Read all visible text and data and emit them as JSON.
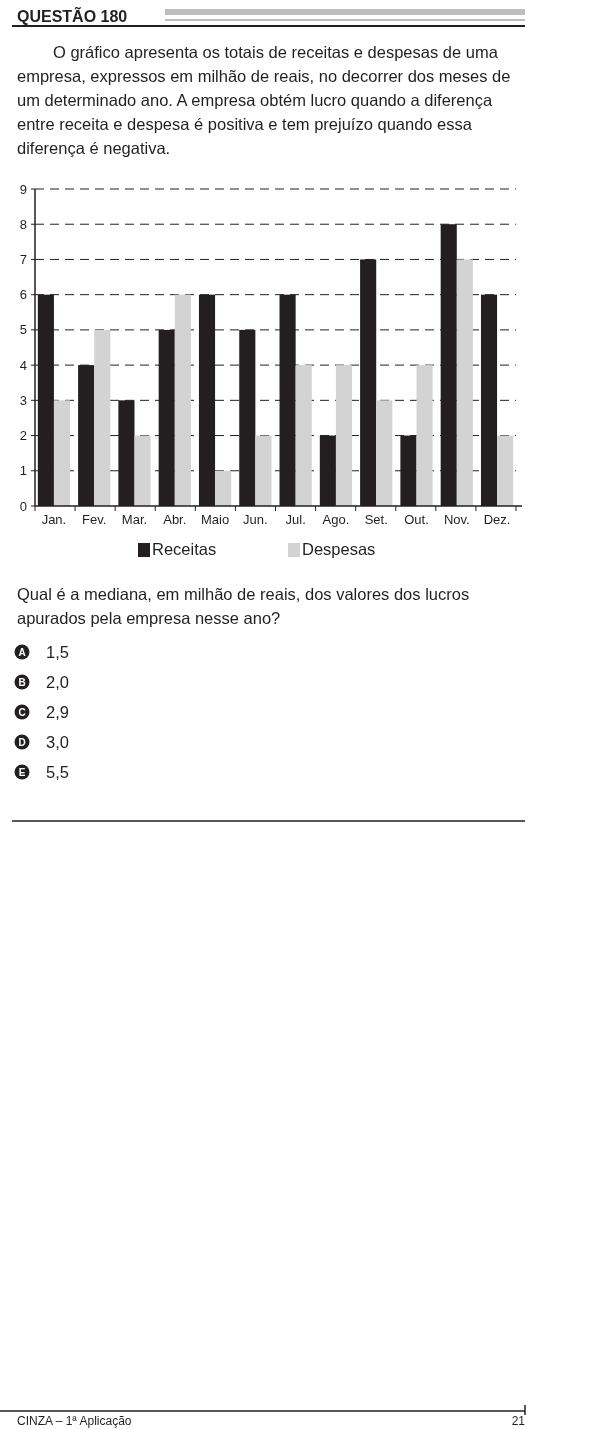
{
  "chart_data": {
    "type": "bar",
    "title": "QUESTÃO 180",
    "subtitle": "O gráfico apresenta os totais de receitas e despesas de uma empresa, expressos em milhão de reais, no decorrer dos meses de um determinado ano. A empresa obtém lucro quando a diferença entre receita e despesa é positiva e tem prejuízo quando essa diferença é negativa.",
    "categories": [
      "Jan.",
      "Fev.",
      "Mar.",
      "Abr.",
      "Maio",
      "Jun.",
      "Jul.",
      "Ago.",
      "Set.",
      "Out.",
      "Nov.",
      "Dez."
    ],
    "series": [
      {
        "name": "Receitas",
        "color": "#231f20",
        "values": [
          6,
          4,
          3,
          5,
          6,
          5,
          6,
          2,
          7,
          2,
          8,
          6
        ]
      },
      {
        "name": "Despesas",
        "color": "#d3d3d3",
        "values": [
          3,
          5,
          2,
          6,
          1,
          2,
          4,
          4,
          3,
          4,
          7,
          2
        ]
      }
    ],
    "ylim": [
      0,
      9
    ],
    "yticks": [
      0,
      1,
      2,
      3,
      4,
      5,
      6,
      7,
      8,
      9
    ],
    "grid": "y",
    "legend": "bottom",
    "annotations": [
      "Qual é a mediana, em milhão de reais, dos valores dos lucros apurados pela empresa nesse ano?",
      "A 1,5",
      "B 2,0",
      "C 2,9",
      "D 3,0",
      "E 5,5",
      "CINZA – 1ª Aplicação",
      "21"
    ]
  }
}
